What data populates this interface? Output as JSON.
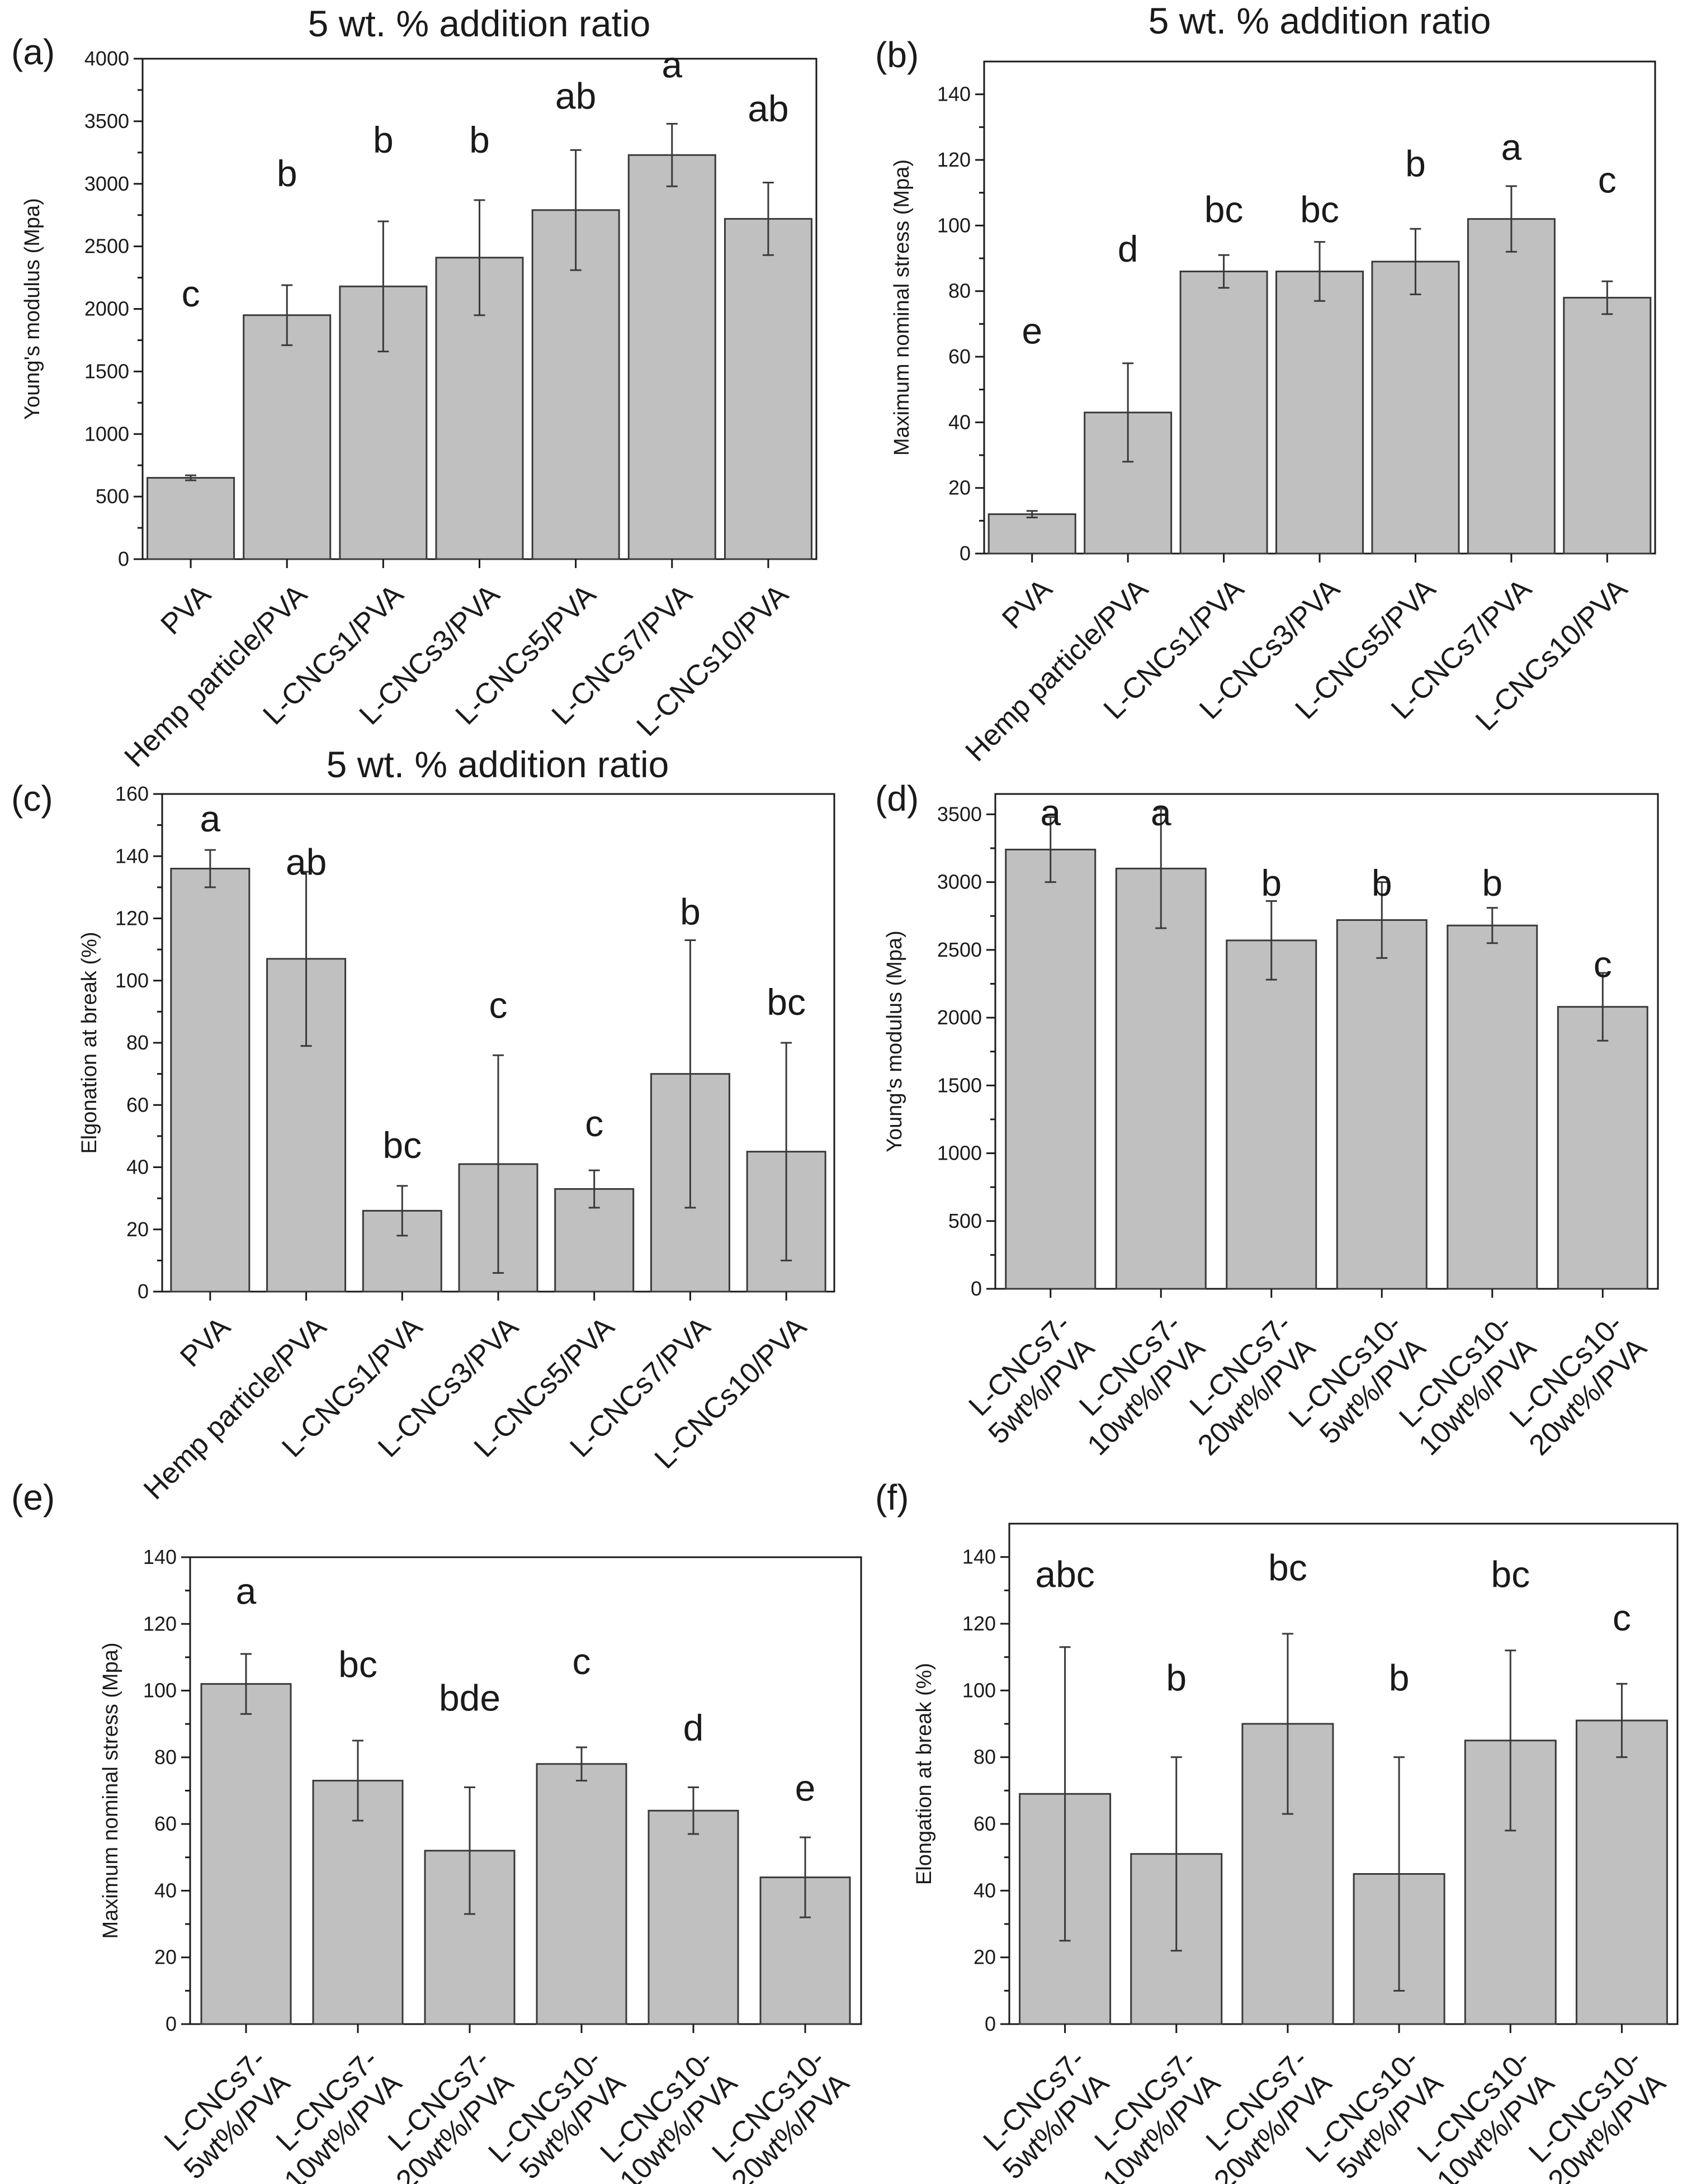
{
  "chart_data": [
    {
      "id": "a",
      "panel_label": "(a)",
      "type": "bar",
      "title": "5 wt. % addition ratio",
      "xlabel": "",
      "ylabel": "Young's modulus (Mpa)",
      "ylim": [
        0,
        4000
      ],
      "yticks": [
        0,
        500,
        1000,
        1500,
        2000,
        2500,
        3000,
        3500,
        4000
      ],
      "categories": [
        [
          "PVA"
        ],
        [
          "Hemp particle/PVA"
        ],
        [
          "L-CNCs1/PVA"
        ],
        [
          "L-CNCs3/PVA"
        ],
        [
          "L-CNCs5/PVA"
        ],
        [
          "L-CNCs7/PVA"
        ],
        [
          "L-CNCs10/PVA"
        ]
      ],
      "values": [
        650,
        1950,
        2180,
        2410,
        2790,
        3230,
        2720
      ],
      "errors": [
        20,
        240,
        520,
        460,
        480,
        250,
        290
      ],
      "letters": [
        "c",
        "b",
        "b",
        "b",
        "ab",
        "a",
        "ab"
      ],
      "letter_values": [
        2020,
        2980,
        3250,
        3250,
        3600,
        3850,
        3500
      ]
    },
    {
      "id": "b",
      "panel_label": "(b)",
      "type": "bar",
      "title": "5 wt. % addition ratio",
      "xlabel": "",
      "ylabel": "Maximum nominal stress (Mpa)",
      "ylim": [
        0,
        150
      ],
      "yticks": [
        0,
        20,
        40,
        60,
        80,
        100,
        120,
        140
      ],
      "categories": [
        [
          "PVA"
        ],
        [
          "Hemp particle/PVA"
        ],
        [
          "L-CNCs1/PVA"
        ],
        [
          "L-CNCs3/PVA"
        ],
        [
          "L-CNCs5/PVA"
        ],
        [
          "L-CNCs7/PVA"
        ],
        [
          "L-CNCs10/PVA"
        ]
      ],
      "values": [
        12,
        43,
        86,
        86,
        89,
        102,
        78
      ],
      "errors": [
        1,
        15,
        5,
        9,
        10,
        10,
        5
      ],
      "letters": [
        "e",
        "d",
        "bc",
        "bc",
        "b",
        "a",
        "c"
      ],
      "letter_values": [
        64,
        89,
        101,
        101,
        115,
        120,
        110
      ]
    },
    {
      "id": "c",
      "panel_label": "(c)",
      "type": "bar",
      "title": "5 wt. % addition ratio",
      "xlabel": "",
      "ylabel": "Elgonation at break (%)",
      "ylim": [
        0,
        160
      ],
      "yticks": [
        0,
        20,
        40,
        60,
        80,
        100,
        120,
        140,
        160
      ],
      "categories": [
        [
          "PVA"
        ],
        [
          "Hemp particle/PVA"
        ],
        [
          "L-CNCs1/PVA"
        ],
        [
          "L-CNCs3/PVA"
        ],
        [
          "L-CNCs5/PVA"
        ],
        [
          "L-CNCs7/PVA"
        ],
        [
          "L-CNCs10/PVA"
        ]
      ],
      "values": [
        136,
        107,
        26,
        41,
        33,
        70,
        45
      ],
      "errors": [
        6,
        28,
        8,
        35,
        6,
        43,
        35
      ],
      "letters": [
        "a",
        "ab",
        "bc",
        "c",
        "c",
        "b",
        "bc"
      ],
      "letter_values": [
        148,
        134,
        43,
        88,
        50,
        118,
        89
      ]
    },
    {
      "id": "d",
      "panel_label": "(d)",
      "type": "bar",
      "title": "",
      "xlabel": "",
      "ylabel": "Young's modulus (Mpa)",
      "ylim": [
        0,
        3650
      ],
      "yticks": [
        0,
        500,
        1000,
        1500,
        2000,
        2500,
        3000,
        3500
      ],
      "categories": [
        [
          "L-CNCs7-",
          "5wt%/PVA"
        ],
        [
          "L-CNCs7-",
          "10wt%/PVA"
        ],
        [
          "L-CNCs7-",
          "20wt%/PVA"
        ],
        [
          "L-CNCs10-",
          "5wt%/PVA"
        ],
        [
          "L-CNCs10-",
          "10wt%/PVA"
        ],
        [
          "L-CNCs10-",
          "20wt%/PVA"
        ]
      ],
      "values": [
        3240,
        3100,
        2570,
        2720,
        2680,
        2080
      ],
      "errors": [
        240,
        440,
        290,
        280,
        130,
        250
      ],
      "letters": [
        "a",
        "a",
        "b",
        "b",
        "b",
        "c"
      ],
      "letter_values": [
        3420,
        3420,
        2900,
        2900,
        2900,
        2300
      ]
    },
    {
      "id": "e",
      "panel_label": "(e)",
      "type": "bar",
      "title": "",
      "xlabel": "",
      "ylabel": "Maximum nominal stress (Mpa)",
      "ylim": [
        0,
        140
      ],
      "yticks": [
        0,
        20,
        40,
        60,
        80,
        100,
        120,
        140
      ],
      "categories": [
        [
          "L-CNCs7-",
          "5wt%/PVA"
        ],
        [
          "L-CNCs7-",
          "10wt%/PVA"
        ],
        [
          "L-CNCs7-",
          "20wt%/PVA"
        ],
        [
          "L-CNCs10-",
          "5wt%/PVA"
        ],
        [
          "L-CNCs10-",
          "10wt%/PVA"
        ],
        [
          "L-CNCs10-",
          "20wt%/PVA"
        ]
      ],
      "values": [
        102,
        73,
        52,
        78,
        64,
        44
      ],
      "errors": [
        9,
        12,
        19,
        5,
        7,
        12
      ],
      "letters": [
        "a",
        "bc",
        "bde",
        "c",
        "d",
        "e"
      ],
      "letter_values": [
        126,
        104,
        94,
        105,
        85,
        67
      ]
    },
    {
      "id": "f",
      "panel_label": "(f)",
      "type": "bar",
      "title": "",
      "xlabel": "",
      "ylabel": "Elongation at break (%)",
      "ylim": [
        0,
        150
      ],
      "yticks": [
        0,
        20,
        40,
        60,
        80,
        100,
        120,
        140
      ],
      "categories": [
        [
          "L-CNCs7-",
          "5wt%/PVA"
        ],
        [
          "L-CNCs7-",
          "10wt%/PVA"
        ],
        [
          "L-CNCs7-",
          "20wt%/PVA"
        ],
        [
          "L-CNCs10-",
          "5wt%/PVA"
        ],
        [
          "L-CNCs10-",
          "10wt%/PVA"
        ],
        [
          "L-CNCs10-",
          "20wt%/PVA"
        ]
      ],
      "values": [
        69,
        51,
        90,
        45,
        85,
        91
      ],
      "errors": [
        44,
        29,
        27,
        35,
        27,
        11
      ],
      "letters": [
        "abc",
        "b",
        "bc",
        "b",
        "bc",
        "c"
      ],
      "letter_values": [
        131,
        100,
        133,
        100,
        131,
        118
      ]
    }
  ]
}
